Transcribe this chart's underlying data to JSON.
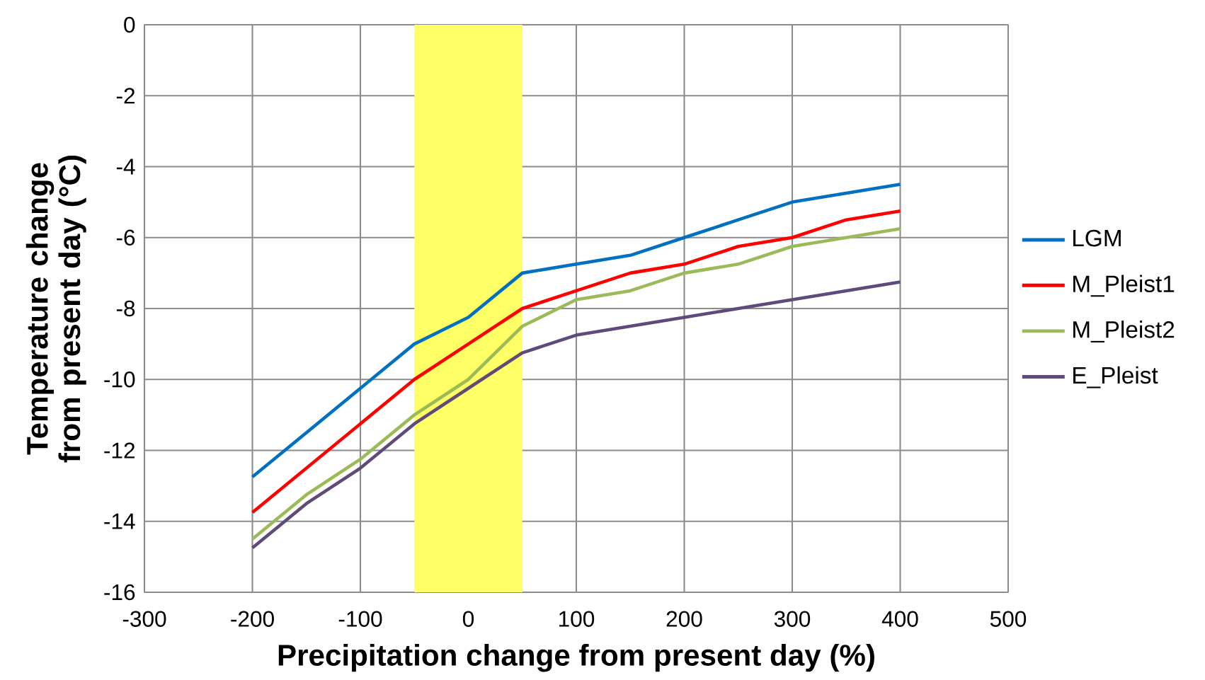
{
  "chart_data": {
    "type": "line",
    "xlabel": "Precipitation change from present day (%)",
    "ylabel": "Temperature change from present day (°C)",
    "x": [
      -200,
      -150,
      -100,
      -50,
      0,
      50,
      100,
      150,
      200,
      250,
      300,
      350,
      400
    ],
    "series": [
      {
        "name": "LGM",
        "color": "#0070c0",
        "values": [
          -12.75,
          -11.5,
          -10.25,
          -9,
          -8.25,
          -7,
          -6.75,
          -6.5,
          -6,
          -5.5,
          -5,
          -4.75,
          -4.5
        ]
      },
      {
        "name": "M_Pleist1",
        "color": "#ff0000",
        "values": [
          -13.75,
          -12.5,
          -11.25,
          -10,
          -9,
          -8,
          -7.5,
          -7,
          -6.75,
          -6.25,
          -6,
          -5.5,
          -5.25
        ]
      },
      {
        "name": "M_Pleist2",
        "color": "#9bbb59",
        "values": [
          -14.5,
          -13.25,
          -12.25,
          -11,
          -10,
          -8.5,
          -7.75,
          -7.5,
          -7,
          -6.75,
          -6.25,
          -6,
          -5.75
        ]
      },
      {
        "name": "E_Pleist",
        "color": "#604a7b",
        "values": [
          -14.75,
          -13.5,
          -12.5,
          -11.25,
          -10.25,
          -9.25,
          -8.75,
          -8.5,
          -8.25,
          -8,
          -7.75,
          -7.5,
          -7.25
        ]
      }
    ],
    "xlim": [
      -300,
      500
    ],
    "ylim": [
      -16,
      0
    ],
    "xticks": [
      -300,
      -200,
      -100,
      0,
      100,
      200,
      300,
      400,
      500
    ],
    "yticks": [
      -16,
      -14,
      -12,
      -10,
      -8,
      -6,
      -4,
      -2,
      0
    ],
    "bands": [
      {
        "axis": "x",
        "from": -50,
        "to": 50,
        "color": "#ffff66"
      }
    ],
    "grid": true,
    "legend": "right",
    "marker": "none",
    "line_style": "solid"
  }
}
